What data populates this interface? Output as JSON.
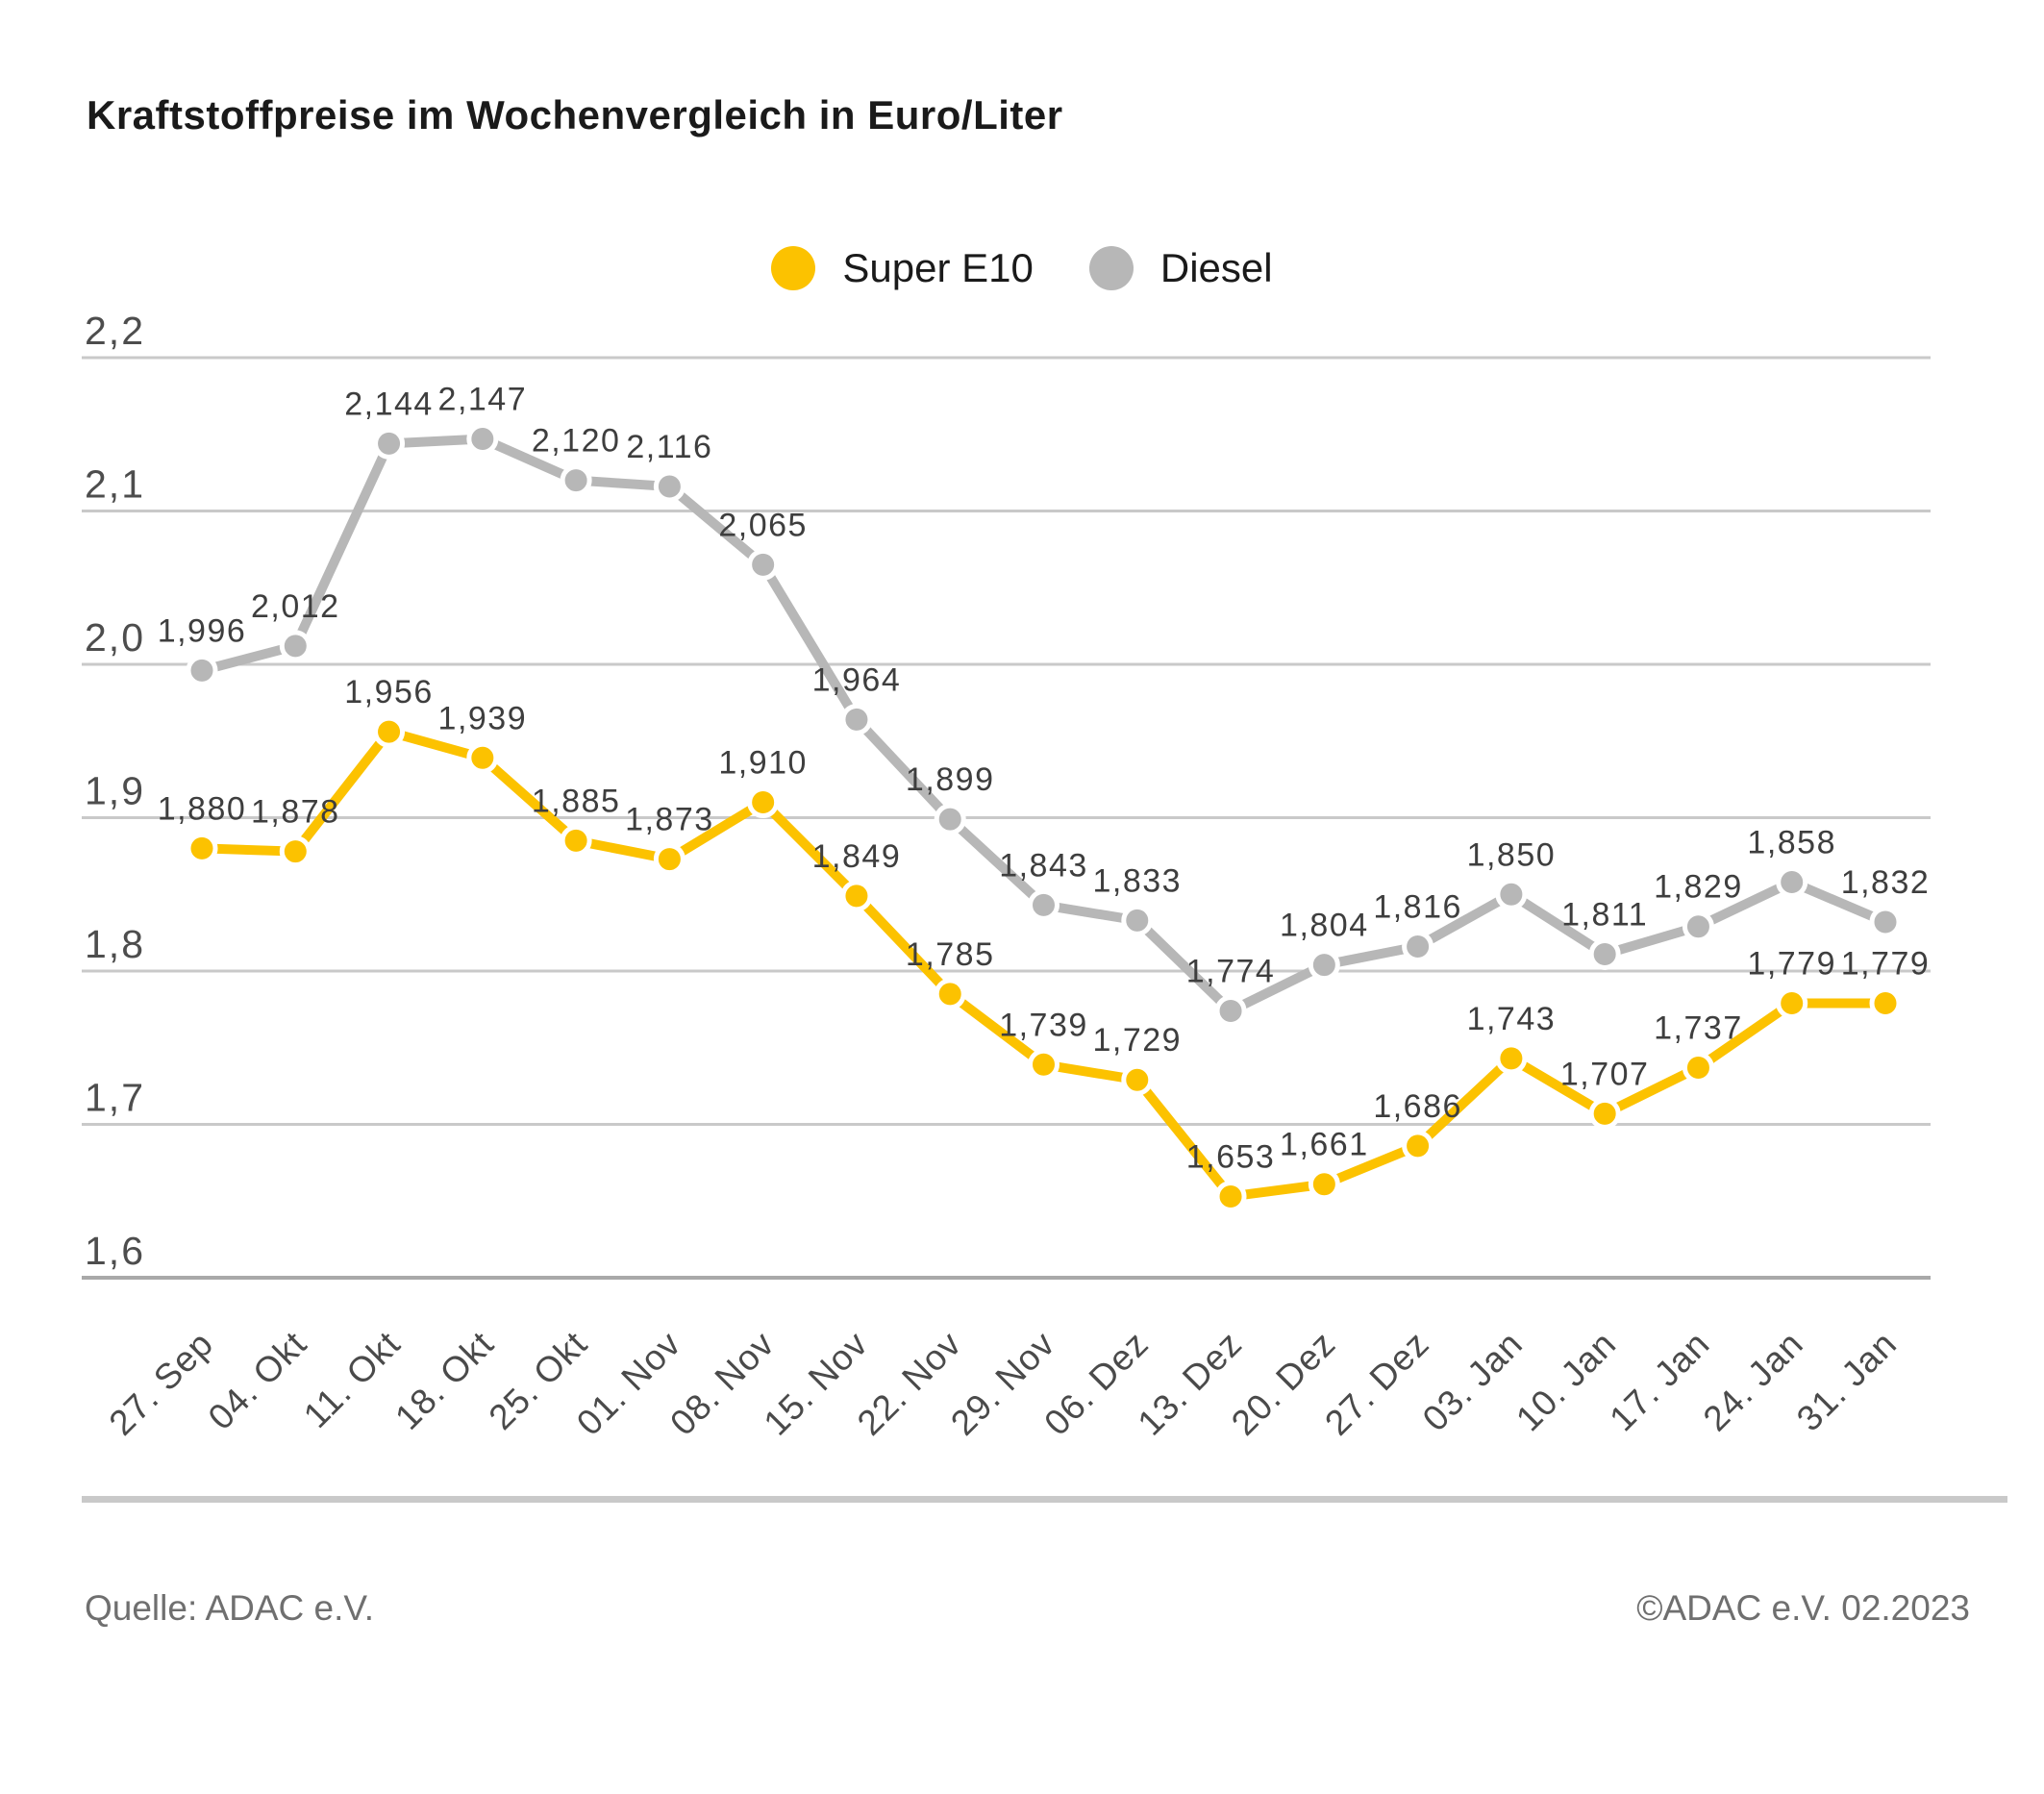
{
  "title": "Kraftstoffpreise im Wochenvergleich in Euro/Liter",
  "legend": {
    "items": [
      {
        "label": "Super E10",
        "color": "#FCC200"
      },
      {
        "label": "Diesel",
        "color": "#B7B7B7"
      }
    ]
  },
  "chart_data": {
    "type": "line",
    "x": [
      "27. Sep",
      "04. Okt",
      "11. Okt",
      "18. Okt",
      "25. Okt",
      "01. Nov",
      "08. Nov",
      "15. Nov",
      "22. Nov",
      "29. Nov",
      "06. Dez",
      "13. Dez",
      "20. Dez",
      "27. Dez",
      "03. Jan",
      "10. Jan",
      "17. Jan",
      "24. Jan",
      "31. Jan"
    ],
    "series": [
      {
        "name": "Diesel",
        "color": "#B7B7B7",
        "values": [
          1.996,
          2.012,
          2.144,
          2.147,
          2.12,
          2.116,
          2.065,
          1.964,
          1.899,
          1.843,
          1.833,
          1.774,
          1.804,
          1.816,
          1.85,
          1.811,
          1.829,
          1.858,
          1.832
        ]
      },
      {
        "name": "Super E10",
        "color": "#FCC200",
        "values": [
          1.88,
          1.878,
          1.956,
          1.939,
          1.885,
          1.873,
          1.91,
          1.849,
          1.785,
          1.739,
          1.729,
          1.653,
          1.661,
          1.686,
          1.743,
          1.707,
          1.737,
          1.779,
          1.779
        ]
      }
    ],
    "title": "Kraftstoffpreise im Wochenvergleich in Euro/Liter",
    "xlabel": "",
    "ylabel": "Euro/Liter",
    "ylim": [
      1.6,
      2.2
    ],
    "yticks": [
      "2,2",
      "2,1",
      "2,0",
      "1,9",
      "1,8",
      "1,7",
      "1,6"
    ],
    "grid": true,
    "legend_position": "top-center",
    "decimal_separator": ","
  },
  "footer": {
    "source": "Quelle: ADAC e.V.",
    "copyright": "©ADAC e.V. 02.2023"
  },
  "colors": {
    "grid": "#C9C9C9",
    "axis": "#A9A9A9",
    "point_label": "#3E3E3E",
    "tick_label": "#4D4D4D"
  }
}
